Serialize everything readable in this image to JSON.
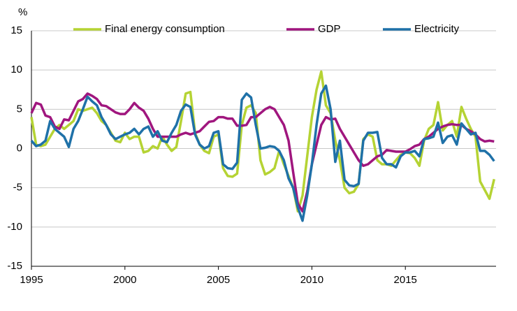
{
  "chart_data": {
    "type": "line",
    "ylabel": "%",
    "x": [
      1995,
      1995.25,
      1995.5,
      1995.75,
      1996,
      1996.25,
      1996.5,
      1996.75,
      1997,
      1997.25,
      1997.5,
      1997.75,
      1998,
      1998.25,
      1998.5,
      1998.75,
      1999,
      1999.25,
      1999.5,
      1999.75,
      2000,
      2000.25,
      2000.5,
      2000.75,
      2001,
      2001.25,
      2001.5,
      2001.75,
      2002,
      2002.25,
      2002.5,
      2002.75,
      2003,
      2003.25,
      2003.5,
      2003.75,
      2004,
      2004.25,
      2004.5,
      2004.75,
      2005,
      2005.25,
      2005.5,
      2005.75,
      2006,
      2006.25,
      2006.5,
      2006.75,
      2007,
      2007.25,
      2007.5,
      2007.75,
      2008,
      2008.25,
      2008.5,
      2008.75,
      2009,
      2009.25,
      2009.5,
      2009.75,
      2010,
      2010.25,
      2010.5,
      2010.75,
      2011,
      2011.25,
      2011.5,
      2011.75,
      2012,
      2012.25,
      2012.5,
      2012.75,
      2013,
      2013.25,
      2013.5,
      2013.75,
      2014,
      2014.25,
      2014.5,
      2014.75,
      2015,
      2015.25,
      2015.5,
      2015.75,
      2016,
      2016.25,
      2016.5,
      2016.75,
      2017,
      2017.25,
      2017.5,
      2017.75,
      2018,
      2018.25,
      2018.5,
      2018.75,
      2019,
      2019.25,
      2019.5,
      2019.75
    ],
    "series": [
      {
        "name": "Final energy consumption",
        "color": "#b5d334",
        "values": [
          4.0,
          0.5,
          0.3,
          0.5,
          1.5,
          2.5,
          3.0,
          2.5,
          3.0,
          3.5,
          5.0,
          4.8,
          5.0,
          5.2,
          4.5,
          3.5,
          3.0,
          2.0,
          1.0,
          0.8,
          2.0,
          1.2,
          1.5,
          1.5,
          -0.5,
          -0.3,
          0.3,
          0.0,
          1.5,
          0.5,
          -0.3,
          0.2,
          3.5,
          7.0,
          7.2,
          2.0,
          0.5,
          -0.3,
          -0.6,
          1.5,
          1.8,
          -2.5,
          -3.5,
          -3.6,
          -3.2,
          3.0,
          5.2,
          5.5,
          4.5,
          -1.5,
          -3.3,
          -3.0,
          -2.5,
          -0.3,
          -2.0,
          -3.5,
          -5.0,
          -8.0,
          -6.0,
          -1.0,
          4.0,
          7.5,
          9.8,
          5.5,
          4.5,
          1.0,
          -1.5,
          -5.0,
          -5.7,
          -5.5,
          -4.5,
          1.2,
          1.8,
          1.5,
          -1.5,
          -2.0,
          -2.0,
          -2.2,
          -1.5,
          -0.8,
          -0.5,
          -0.6,
          -1.2,
          -2.2,
          1.0,
          2.5,
          3.0,
          5.9,
          2.3,
          3.0,
          3.5,
          1.5,
          5.3,
          3.8,
          2.5,
          1.5,
          -4.2,
          -5.3,
          -6.4,
          -3.9
        ]
      },
      {
        "name": "GDP",
        "color": "#a0167e",
        "values": [
          4.5,
          5.8,
          5.6,
          4.2,
          4.0,
          2.8,
          2.5,
          3.7,
          3.6,
          4.8,
          6.0,
          6.3,
          7.0,
          6.7,
          6.3,
          5.5,
          5.4,
          5.0,
          4.6,
          4.4,
          4.4,
          5.0,
          5.8,
          5.2,
          4.8,
          3.8,
          2.5,
          1.5,
          1.5,
          1.5,
          1.5,
          1.5,
          1.8,
          2.0,
          1.8,
          2.0,
          2.2,
          2.8,
          3.4,
          3.5,
          4.0,
          4.0,
          3.8,
          3.8,
          2.9,
          2.9,
          3.0,
          4.0,
          4.0,
          4.5,
          5.0,
          5.3,
          5.0,
          4.0,
          3.0,
          1.0,
          -3.0,
          -7.0,
          -8.0,
          -5.5,
          -2.0,
          0.5,
          3.0,
          4.0,
          3.7,
          3.8,
          2.5,
          1.5,
          0.5,
          -0.5,
          -1.5,
          -2.2,
          -2.0,
          -1.5,
          -1.0,
          -0.8,
          -0.2,
          -0.3,
          -0.4,
          -0.4,
          -0.4,
          -0.1,
          0.3,
          0.5,
          1.2,
          1.5,
          2.0,
          2.5,
          2.8,
          3.0,
          3.1,
          3.0,
          3.0,
          2.5,
          2.2,
          1.8,
          1.2,
          0.9,
          1.0,
          0.9
        ]
      },
      {
        "name": "Electricity",
        "color": "#1f71a8",
        "values": [
          1.0,
          0.3,
          0.5,
          1.0,
          3.5,
          2.5,
          2.0,
          1.5,
          0.2,
          2.5,
          3.5,
          5.0,
          6.6,
          6.0,
          5.5,
          4.0,
          3.0,
          1.8,
          1.2,
          1.5,
          1.8,
          2.0,
          2.5,
          1.8,
          2.5,
          2.8,
          1.5,
          2.2,
          1.0,
          0.8,
          2.0,
          3.0,
          4.8,
          5.6,
          5.3,
          1.8,
          0.5,
          0.0,
          0.3,
          2.0,
          2.2,
          -2.0,
          -2.5,
          -2.6,
          -1.8,
          6.2,
          7.0,
          6.5,
          3.0,
          0.0,
          0.1,
          0.3,
          0.2,
          -0.3,
          -1.5,
          -3.8,
          -5.0,
          -7.5,
          -9.2,
          -6.0,
          -2.0,
          3.0,
          7.0,
          8.0,
          5.0,
          -1.7,
          1.0,
          -4.0,
          -4.7,
          -4.8,
          -4.5,
          1.0,
          2.0,
          2.0,
          2.1,
          -1.2,
          -2.0,
          -2.0,
          -2.4,
          -1.0,
          -0.5,
          -0.5,
          -0.3,
          -1.0,
          1.2,
          1.3,
          1.5,
          3.3,
          0.7,
          1.5,
          1.7,
          0.5,
          3.2,
          2.5,
          1.8,
          2.0,
          -0.3,
          -0.3,
          -0.8,
          -1.6
        ]
      }
    ],
    "xlim": [
      1995,
      2019.85
    ],
    "xticks": [
      1995,
      2000,
      2005,
      2010,
      2015
    ],
    "ylim": [
      -15,
      15
    ],
    "yticks": [
      -15,
      -10,
      -5,
      0,
      5,
      10,
      15
    ],
    "grid": true
  }
}
